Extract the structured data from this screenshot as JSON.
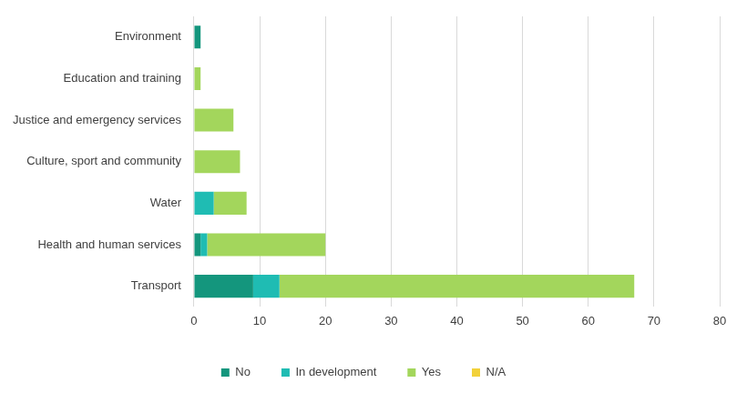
{
  "chart_data": {
    "type": "bar",
    "orientation": "horizontal",
    "stacked": true,
    "grid": true,
    "legend": "bottom",
    "categories": [
      "Environment",
      "Education and training",
      "Justice and emergency services",
      "Culture, sport and community",
      "Water",
      "Health and human services",
      "Transport"
    ],
    "series": [
      {
        "name": "No",
        "color": "#14967d",
        "values": [
          1,
          0,
          0,
          0,
          0,
          1,
          9
        ]
      },
      {
        "name": "In development",
        "color": "#1fbcb3",
        "values": [
          0,
          0,
          0,
          0,
          3,
          1,
          4
        ]
      },
      {
        "name": "Yes",
        "color": "#a3d65c",
        "values": [
          0,
          1,
          6,
          7,
          5,
          18,
          54
        ]
      },
      {
        "name": "N/A",
        "color": "#f2d13a",
        "values": [
          0,
          0,
          0,
          0,
          0,
          0,
          0
        ]
      }
    ],
    "xlim": [
      0,
      80
    ],
    "xticks": [
      0,
      10,
      20,
      30,
      40,
      50,
      60,
      70,
      80
    ]
  }
}
